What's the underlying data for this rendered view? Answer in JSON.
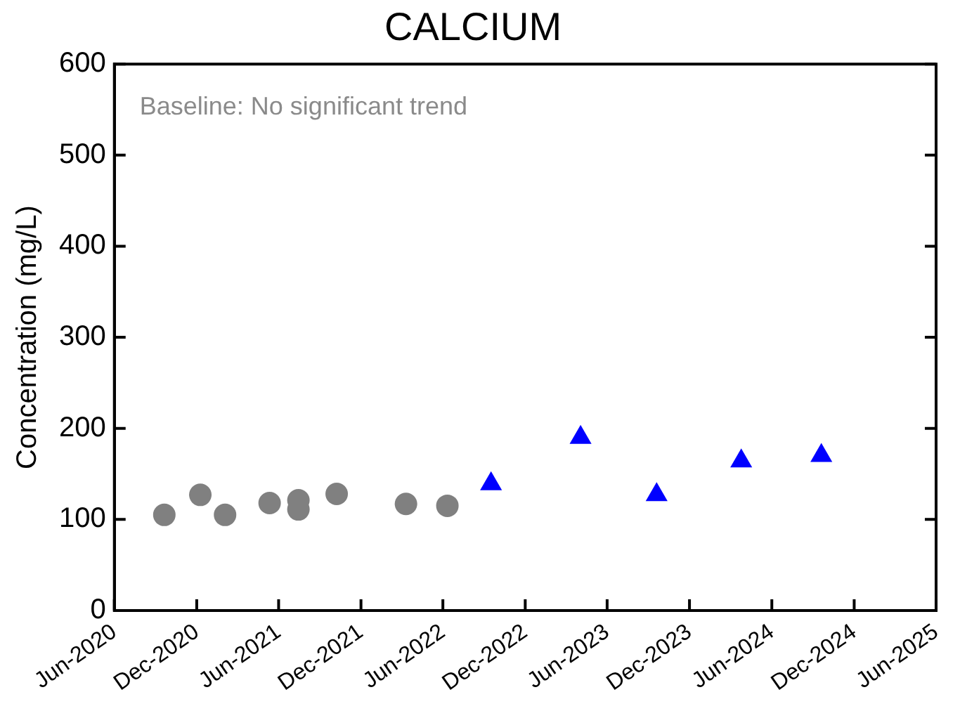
{
  "chart_data": {
    "type": "scatter",
    "title": "CALCIUM",
    "ylabel": "Concentration (mg/L)",
    "annotations": [
      "Baseline: No significant trend"
    ],
    "series": [
      {
        "type": "scatter",
        "marker": "circle",
        "color": "#808080",
        "x": [
          "2020-09-20",
          "2020-12-09",
          "2021-02-02",
          "2021-05-12",
          "2021-07-15",
          "2021-07-15",
          "2021-10-08",
          "2022-03-11",
          "2022-06-11"
        ],
        "values": [
          105,
          127,
          105,
          118,
          121,
          111,
          128,
          117,
          115
        ]
      },
      {
        "type": "scatter",
        "marker": "triangle",
        "color": "#0000ff",
        "x": [
          "2022-09-16",
          "2023-04-03",
          "2023-09-19",
          "2024-03-25",
          "2024-09-19"
        ],
        "values": [
          139,
          190,
          127,
          164,
          170
        ]
      }
    ],
    "xlim": [
      "2020-06-01",
      "2025-06-01"
    ],
    "xticks": [
      {
        "value": "2020-06-01",
        "label": "Jun-2020"
      },
      {
        "value": "2020-12-01",
        "label": "Dec-2020"
      },
      {
        "value": "2021-06-01",
        "label": "Jun-2021"
      },
      {
        "value": "2021-12-01",
        "label": "Dec-2021"
      },
      {
        "value": "2022-06-01",
        "label": "Jun-2022"
      },
      {
        "value": "2022-12-01",
        "label": "Dec-2022"
      },
      {
        "value": "2023-06-01",
        "label": "Jun-2023"
      },
      {
        "value": "2023-12-01",
        "label": "Dec-2023"
      },
      {
        "value": "2024-06-01",
        "label": "Jun-2024"
      },
      {
        "value": "2024-12-01",
        "label": "Dec-2024"
      },
      {
        "value": "2025-06-01",
        "label": "Jun-2025"
      }
    ],
    "ylim": [
      0,
      600
    ],
    "yticks": [
      0,
      100,
      200,
      300,
      400,
      500,
      600
    ],
    "grid": false,
    "legend": false
  }
}
